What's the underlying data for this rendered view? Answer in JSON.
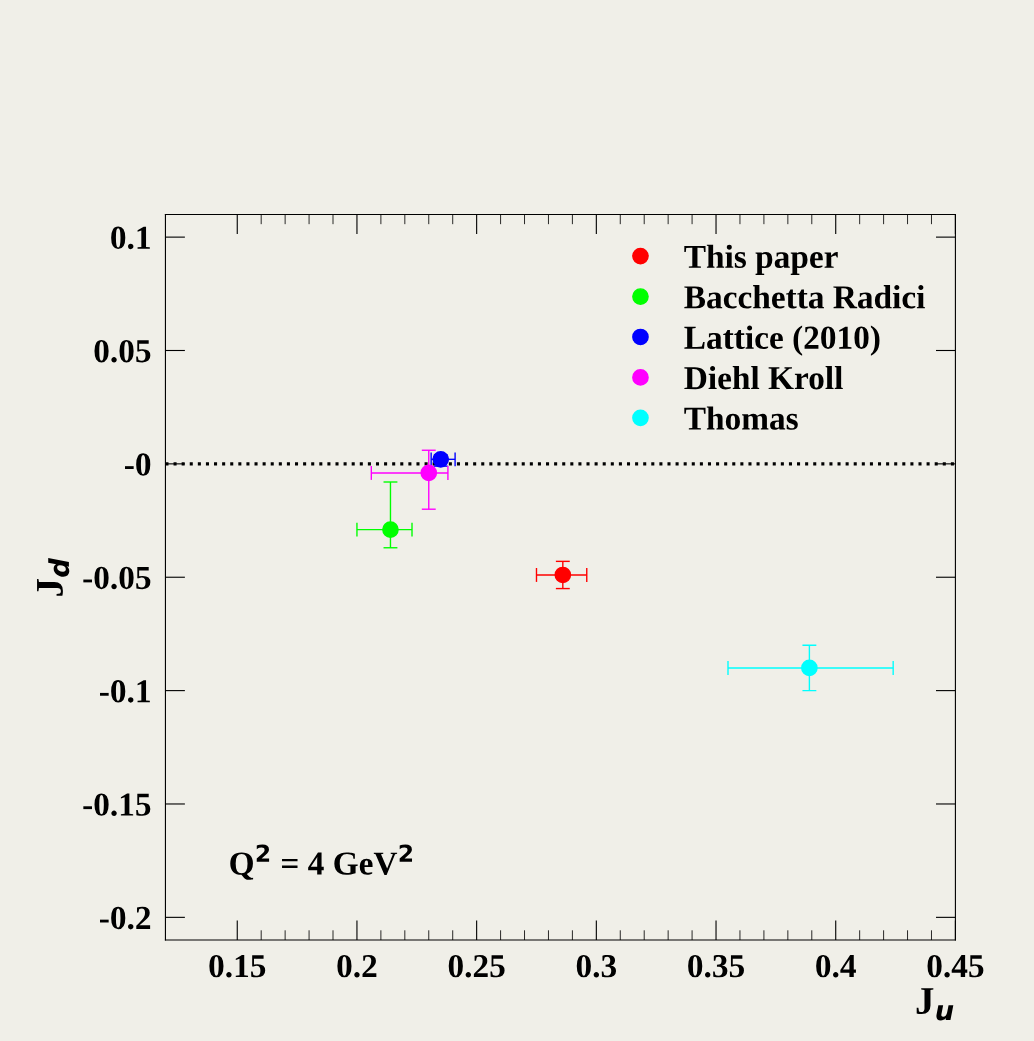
{
  "chart_data": {
    "type": "scatter",
    "xlabel": "J$_{u}$",
    "ylabel": "J$_{d}$",
    "xlim": [
      0.12,
      0.45
    ],
    "ylim": [
      -0.21,
      0.11
    ],
    "xticks": [
      0.15,
      0.2,
      0.25,
      0.3,
      0.35,
      0.4,
      0.45
    ],
    "yticks": [
      -0.2,
      -0.15,
      -0.1,
      -0.05,
      {
        "value": 0,
        "label": "-0"
      },
      0.05,
      0.1
    ],
    "marker": "circle",
    "legend": "top right",
    "grid": false,
    "ref_lines": [
      {
        "axis": "y",
        "value": 0,
        "color": "#000000",
        "line_style": "dotted"
      }
    ],
    "annotations": [
      "Q$^{2}$ = 4 GeV$^{2}$"
    ],
    "series": [
      {
        "name": "This paper",
        "color": "#ff0000",
        "x": [
          0.286
        ],
        "values": [
          -0.049
        ],
        "xerrors": [
          [
            0.275,
            0.296
          ]
        ],
        "errors": [
          [
            -0.055,
            -0.043
          ]
        ]
      },
      {
        "name": "Bacchetta Radici",
        "color": "#00ff00",
        "x": [
          0.214
        ],
        "values": [
          -0.029
        ],
        "xerrors": [
          [
            0.2,
            0.223
          ]
        ],
        "errors": [
          [
            -0.037,
            -0.008
          ]
        ]
      },
      {
        "name": "Lattice (2010)",
        "color": "#0000ff",
        "x": [
          0.235
        ],
        "values": [
          0.002
        ],
        "xerrors": [
          [
            0.231,
            0.241
          ]
        ],
        "errors": [
          [
            -0.001,
            0.004
          ]
        ]
      },
      {
        "name": "Diehl Kroll",
        "color": "#ff00ff",
        "x": [
          0.23
        ],
        "values": [
          -0.004
        ],
        "xerrors": [
          [
            0.206,
            0.238
          ]
        ],
        "errors": [
          [
            -0.02,
            0.006
          ]
        ]
      },
      {
        "name": "Thomas",
        "color": "#00ffff",
        "x": [
          0.389
        ],
        "values": [
          -0.09
        ],
        "xerrors": [
          [
            0.355,
            0.424
          ]
        ],
        "errors": [
          [
            -0.1,
            -0.08
          ]
        ]
      }
    ]
  }
}
